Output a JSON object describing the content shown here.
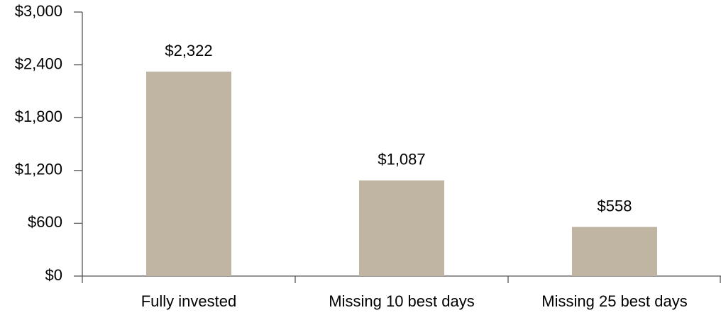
{
  "chart_data": {
    "type": "bar",
    "categories": [
      "Fully invested",
      "Missing 10 best days",
      "Missing 25 best days"
    ],
    "values": [
      2322,
      1087,
      558
    ],
    "value_labels": [
      "$2,322",
      "$1,087",
      "$558"
    ],
    "color": "#c0b4a3",
    "ylim": [
      0,
      3000
    ],
    "yticks": [
      {
        "value": 0,
        "label": "$0"
      },
      {
        "value": 600,
        "label": "$600"
      },
      {
        "value": 1200,
        "label": "$1,200"
      },
      {
        "value": 1800,
        "label": "$1,800"
      },
      {
        "value": 2400,
        "label": "$2,400"
      },
      {
        "value": 3000,
        "label": "$3,000"
      }
    ]
  }
}
